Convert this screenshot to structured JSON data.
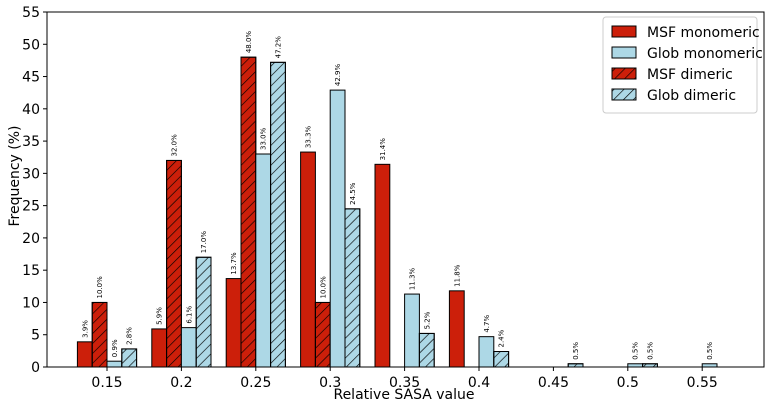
{
  "chart_data": {
    "type": "bar",
    "title": "",
    "xlabel": "Relative SASA value",
    "ylabel": "Frequency (%)",
    "ylim": [
      0,
      55
    ],
    "yticks": [
      0,
      5,
      10,
      15,
      20,
      25,
      30,
      35,
      40,
      45,
      50,
      55
    ],
    "categories": [
      "0.15",
      "0.2",
      "0.25",
      "0.3",
      "0.35",
      "0.4",
      "0.45",
      "0.5",
      "0.55"
    ],
    "legend_position": "top-right",
    "series": [
      {
        "name": "MSF monomeric",
        "color": "#cc1f0a",
        "hatch": false,
        "values": [
          3.9,
          5.9,
          13.7,
          33.3,
          31.4,
          11.8,
          0,
          0,
          0
        ],
        "labels": [
          "3.9%",
          "5.9%",
          "13.7%",
          "33.3%",
          "31.4%",
          "11.8%",
          "",
          "",
          ""
        ]
      },
      {
        "name": "MSF dimeric",
        "color": "#cc1f0a",
        "hatch": true,
        "values": [
          10.0,
          32.0,
          48.0,
          10.0,
          0,
          0,
          0,
          0,
          0
        ],
        "labels": [
          "10.0%",
          "32.0%",
          "48.0%",
          "10.0%",
          "",
          "",
          "",
          "",
          ""
        ]
      },
      {
        "name": "Glob monomeric",
        "color": "#add8e6",
        "hatch": false,
        "values": [
          0.9,
          6.1,
          33.0,
          42.9,
          11.3,
          4.7,
          0,
          0.5,
          0.5
        ],
        "labels": [
          "0.9%",
          "6.1%",
          "33.0%",
          "42.9%",
          "11.3%",
          "4.7%",
          "",
          "0.5%",
          "0.5%"
        ]
      },
      {
        "name": "Glob dimeric",
        "color": "#add8e6",
        "hatch": true,
        "values": [
          2.8,
          17.0,
          47.2,
          24.5,
          5.2,
          2.4,
          0.5,
          0.5,
          0
        ],
        "labels": [
          "2.8%",
          "17.0%",
          "47.2%",
          "24.5%",
          "5.2%",
          "2.4%",
          "0.5%",
          "0.5%",
          ""
        ]
      }
    ],
    "legend_order": [
      "MSF monomeric",
      "Glob monomeric",
      "MSF dimeric",
      "Glob dimeric"
    ]
  }
}
